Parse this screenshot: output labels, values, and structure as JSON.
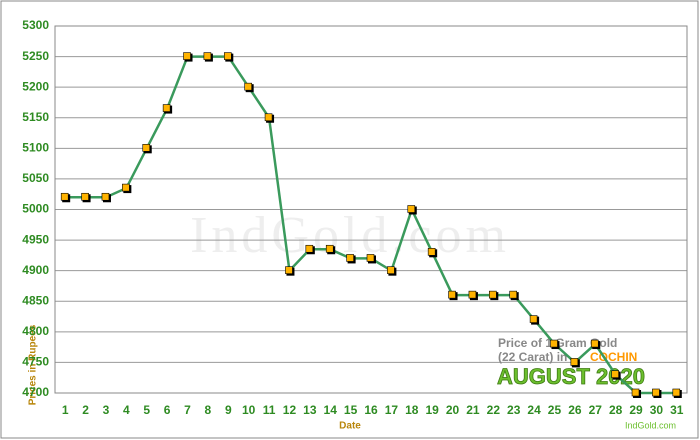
{
  "chart_data": {
    "type": "line",
    "x_label": "Date",
    "y_label": "Prices in Rupees",
    "watermark": "IndGold.com",
    "annotation_title": "Price of 1 Gram Gold",
    "annotation_sub": "(22 Carat) in",
    "annotation_city": "COCHIN",
    "annotation_month": "AUGUST 2020",
    "footer": "IndGold.com",
    "categories": [
      "1",
      "2",
      "3",
      "4",
      "5",
      "6",
      "7",
      "8",
      "9",
      "10",
      "11",
      "12",
      "13",
      "14",
      "15",
      "16",
      "17",
      "18",
      "19",
      "20",
      "21",
      "22",
      "23",
      "24",
      "25",
      "26",
      "27",
      "28",
      "29",
      "30",
      "31"
    ],
    "series": [
      {
        "name": "Price",
        "color": "#3a9a5c",
        "marker_color": "#ffb300",
        "values": [
          5020,
          5020,
          5020,
          5035,
          5100,
          5165,
          5250,
          5250,
          5250,
          5200,
          5150,
          4900,
          4935,
          4935,
          4920,
          4920,
          4900,
          5000,
          4930,
          4860,
          4860,
          4860,
          4860,
          4820,
          4780,
          4750,
          4780,
          4730,
          4700,
          4700,
          4700
        ]
      }
    ],
    "ylim": [
      4700,
      5300
    ],
    "yticks": [
      4700,
      4750,
      4800,
      4850,
      4900,
      4950,
      5000,
      5050,
      5100,
      5150,
      5200,
      5250,
      5300
    ],
    "grid": true
  }
}
